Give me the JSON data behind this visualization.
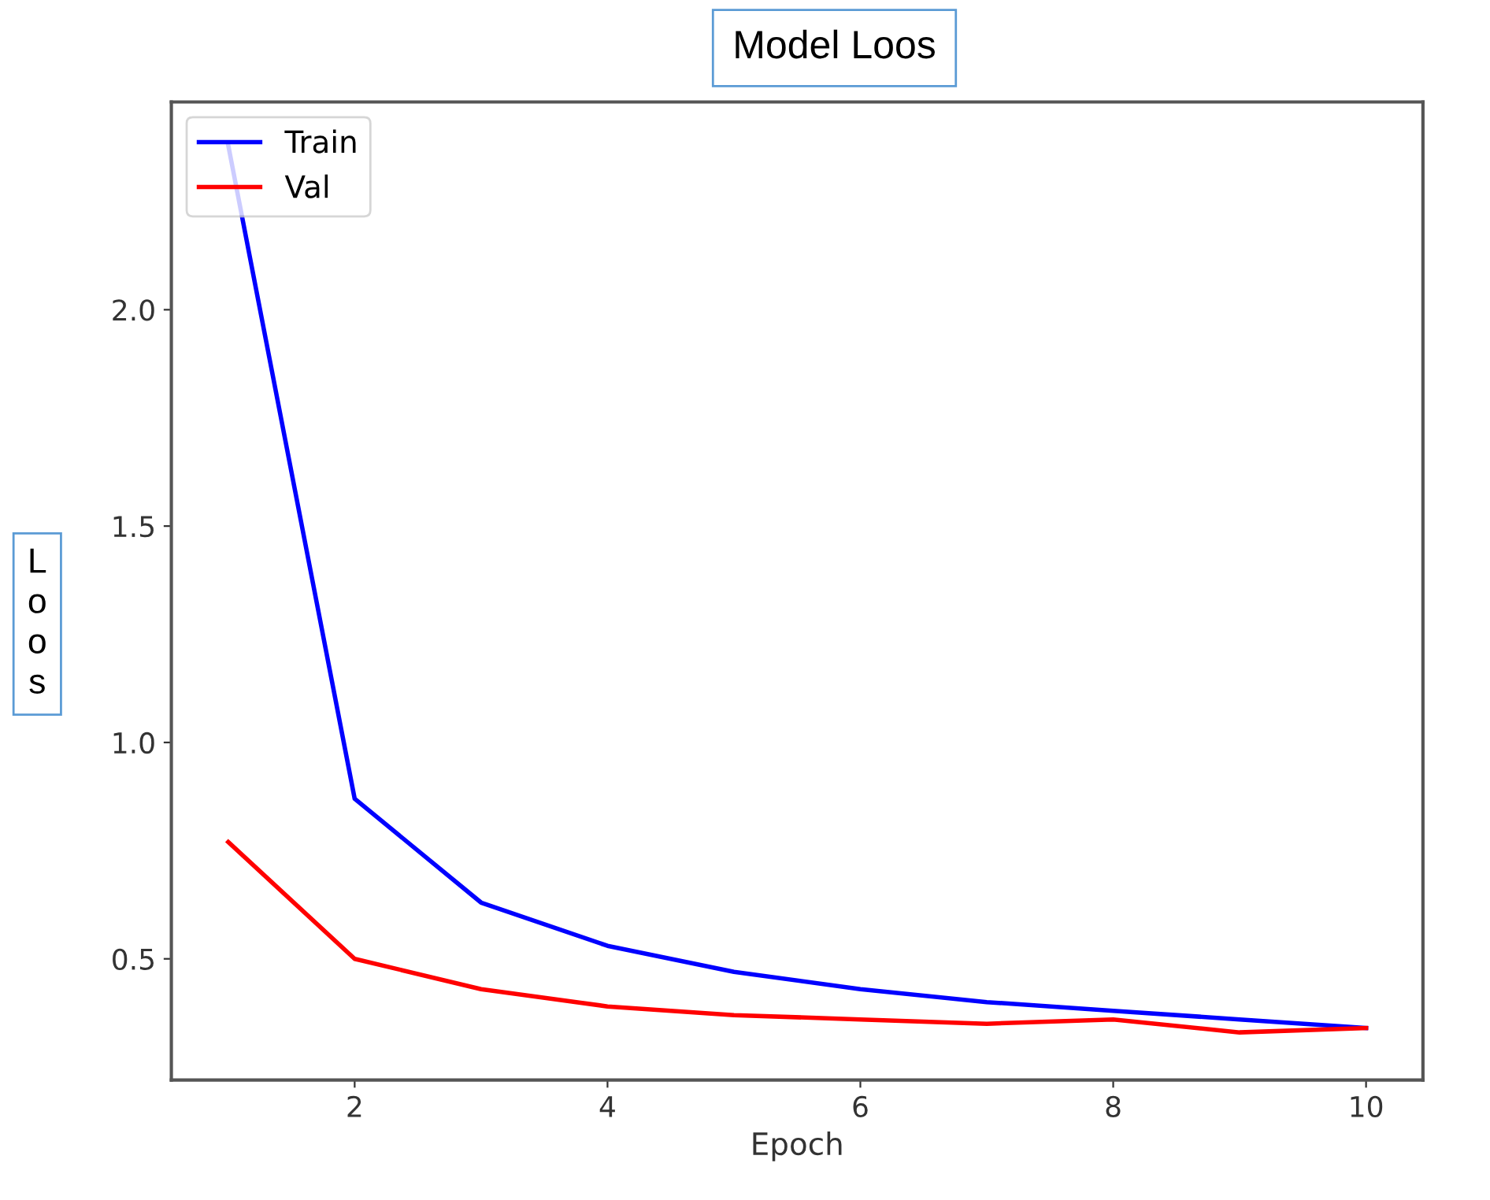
{
  "chart_data": {
    "type": "line",
    "title": "Model Loos",
    "xlabel": "Epoch",
    "ylabel": "Loos",
    "x": [
      1,
      2,
      3,
      4,
      5,
      6,
      7,
      8,
      9,
      10
    ],
    "series": [
      {
        "name": "Train",
        "color": "#0000ff",
        "values": [
          2.38,
          0.87,
          0.63,
          0.53,
          0.47,
          0.43,
          0.4,
          0.38,
          0.36,
          0.34
        ]
      },
      {
        "name": "Val",
        "color": "#ff0000",
        "values": [
          0.77,
          0.5,
          0.43,
          0.39,
          0.37,
          0.36,
          0.35,
          0.36,
          0.33,
          0.34
        ]
      }
    ],
    "xlim": [
      0.55,
      10.45
    ],
    "ylim": [
      0.22,
      2.48
    ],
    "xticks": [
      2,
      4,
      6,
      8,
      10
    ],
    "yticks": [
      0.5,
      {
        "value": 1,
        "label": "1.0"
      },
      1.5,
      {
        "value": 2,
        "label": "2.0"
      }
    ],
    "legend": "top left",
    "grid": false,
    "marker": "none",
    "line_style": "solid"
  }
}
